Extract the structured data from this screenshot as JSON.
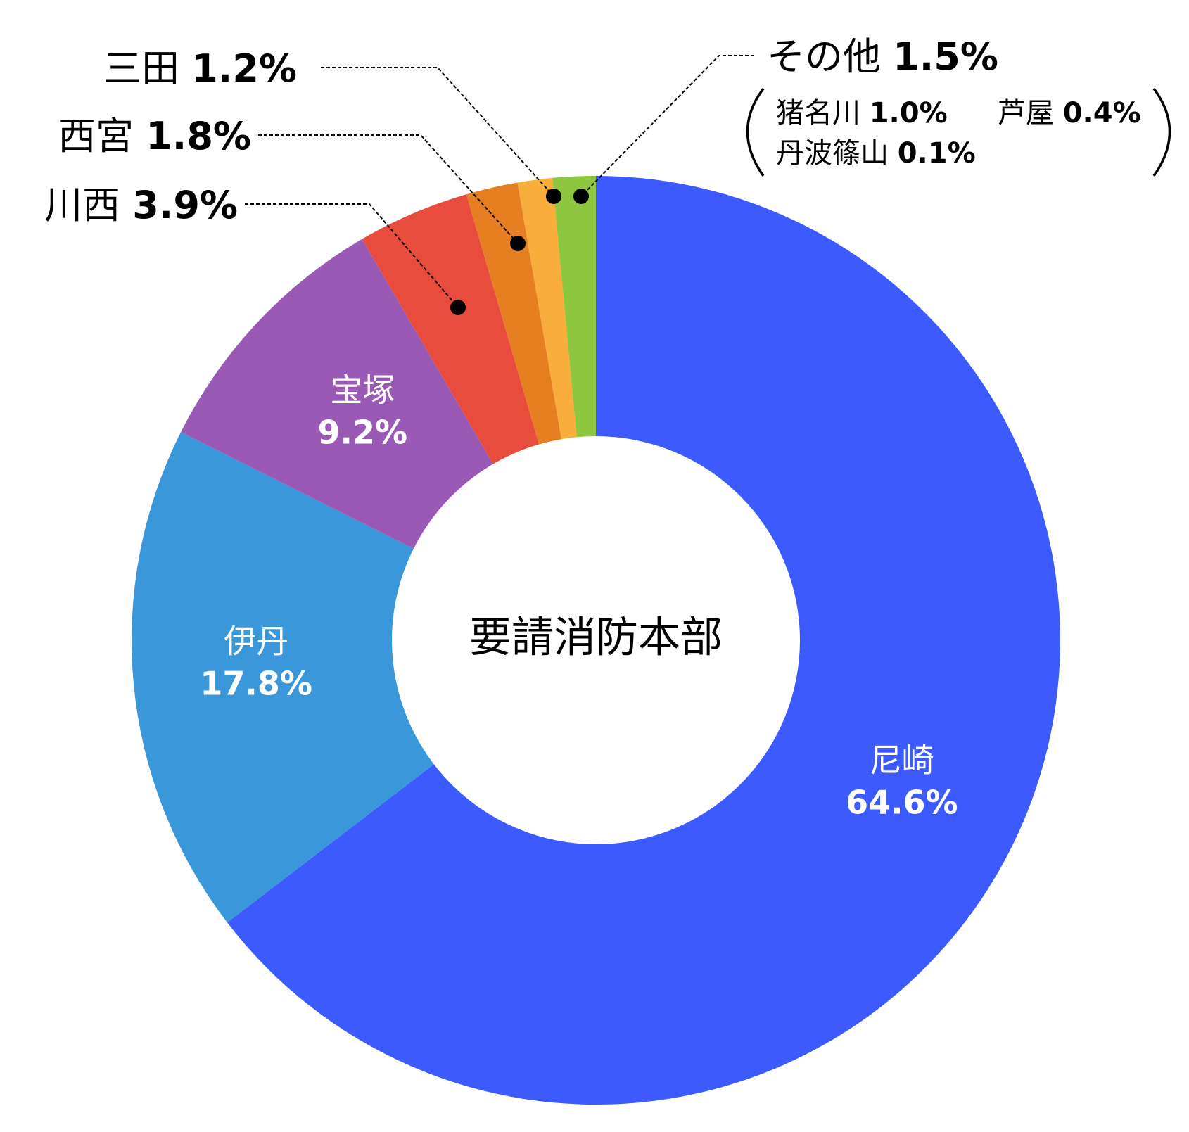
{
  "chart_data": {
    "type": "pie",
    "donut": true,
    "center_label": "要請消防本部",
    "slices": [
      {
        "name": "尼崎",
        "value": 64.6,
        "label": "64.6%",
        "color": "#3d5afe"
      },
      {
        "name": "伊丹",
        "value": 17.8,
        "label": "17.8%",
        "color": "#3a97da"
      },
      {
        "name": "宝塚",
        "value": 9.2,
        "label": "9.2%",
        "color": "#9b59b6"
      },
      {
        "name": "川西",
        "value": 3.9,
        "label": "3.9%",
        "color": "#e74c3c"
      },
      {
        "name": "西宮",
        "value": 1.8,
        "label": "1.8%",
        "color": "#e67e22"
      },
      {
        "name": "三田",
        "value": 1.2,
        "label": "1.2%",
        "color": "#f9ae3c"
      },
      {
        "name": "その他",
        "value": 1.5,
        "label": "1.5%",
        "color": "#8dc63f"
      }
    ],
    "other_breakdown": [
      {
        "name": "猪名川",
        "label": "1.0%"
      },
      {
        "name": "芦屋",
        "label": "0.4%"
      },
      {
        "name": "丹波篠山",
        "label": "0.1%"
      }
    ]
  }
}
